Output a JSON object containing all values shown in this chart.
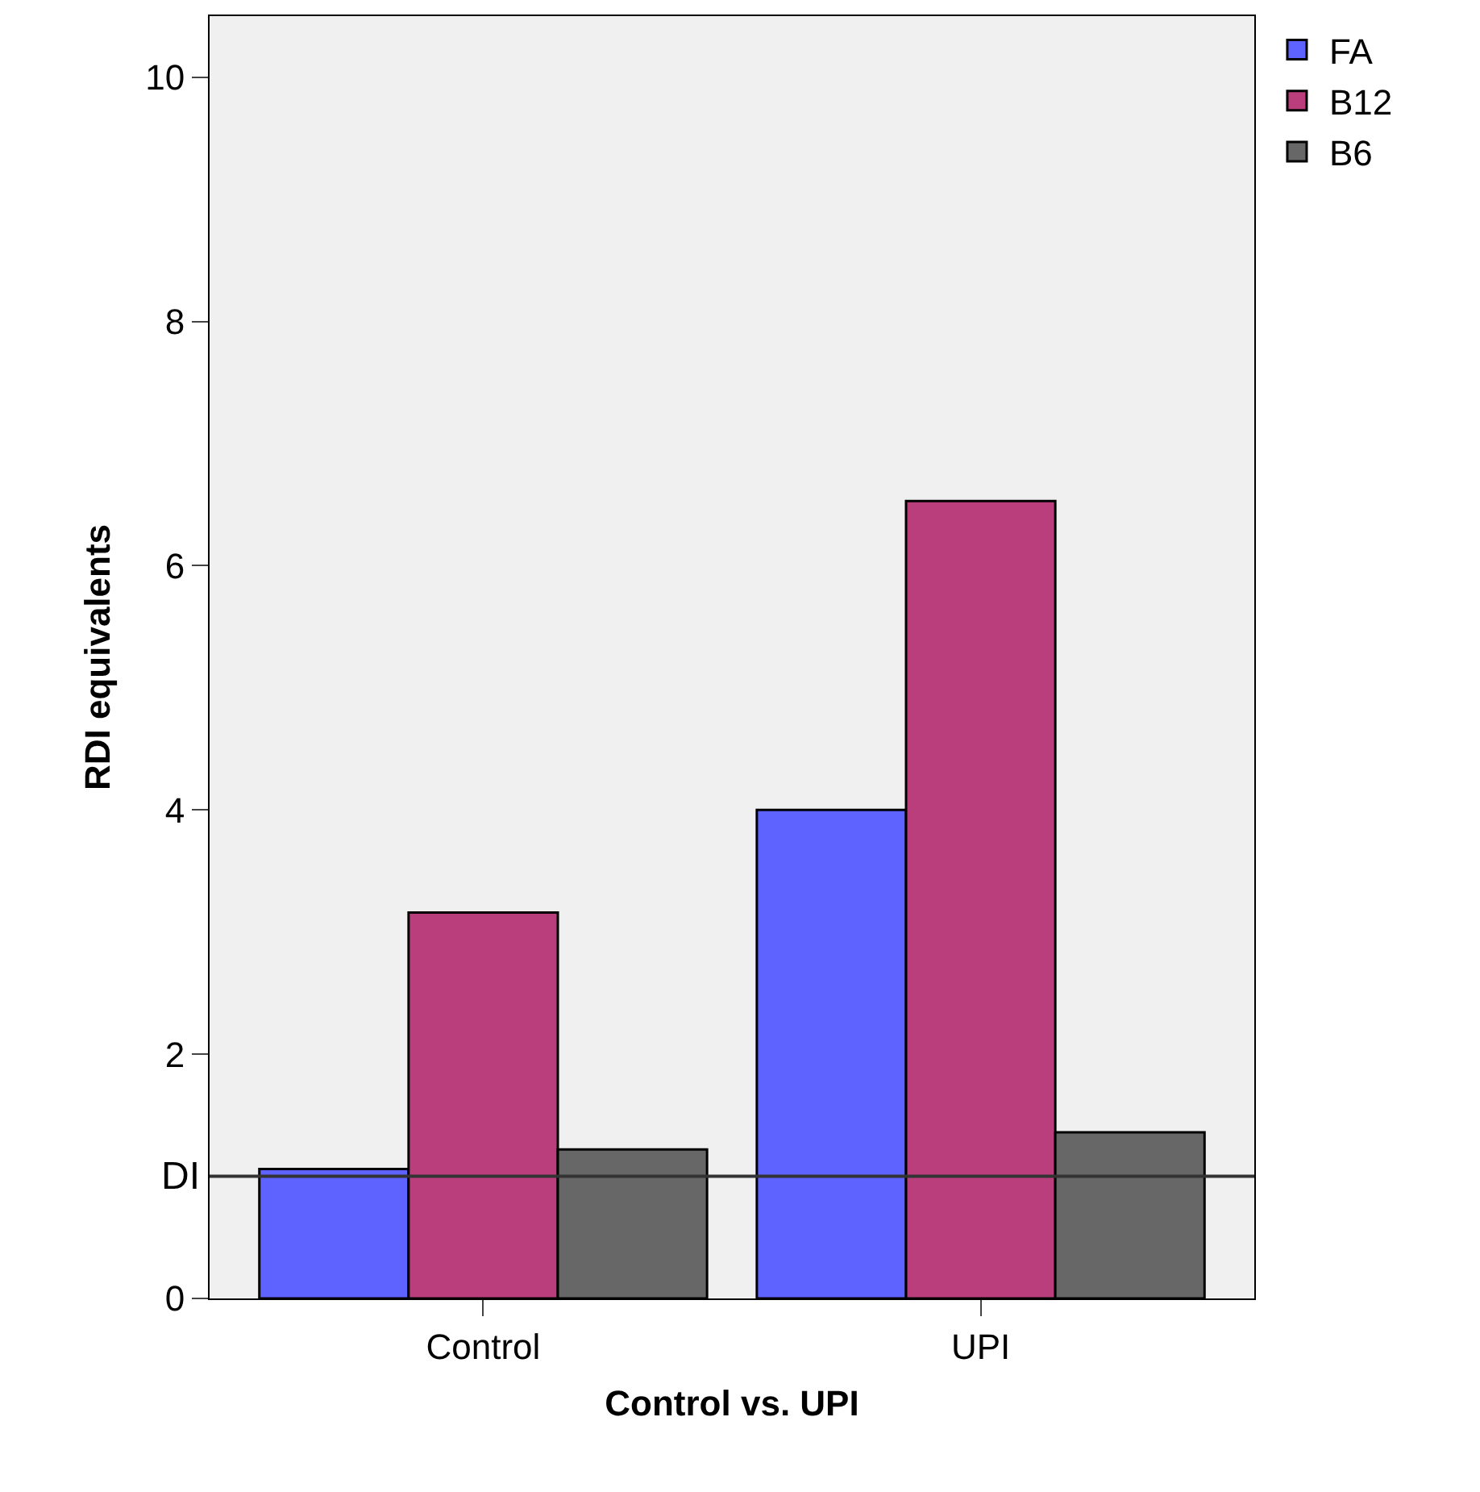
{
  "chart_data": {
    "type": "bar",
    "xlabel": "Control vs. UPI",
    "ylabel": "RDI equivalents",
    "categories": [
      "Control",
      "UPI"
    ],
    "series": [
      {
        "name": "FA",
        "color": "#5e62fe",
        "values": [
          1.06,
          4.0
        ]
      },
      {
        "name": "B12",
        "color": "#b93e7b",
        "values": [
          3.16,
          6.53
        ]
      },
      {
        "name": "B6",
        "color": "#676767",
        "values": [
          1.22,
          1.36
        ]
      }
    ],
    "ylim": [
      0,
      10.5
    ],
    "yticks": [
      0,
      2,
      4,
      6,
      8,
      10
    ],
    "ref_lines": [
      {
        "axis": "y",
        "value": 1.0,
        "label": "DI",
        "color": "#333333"
      }
    ],
    "legend": "top right",
    "grid": false
  }
}
